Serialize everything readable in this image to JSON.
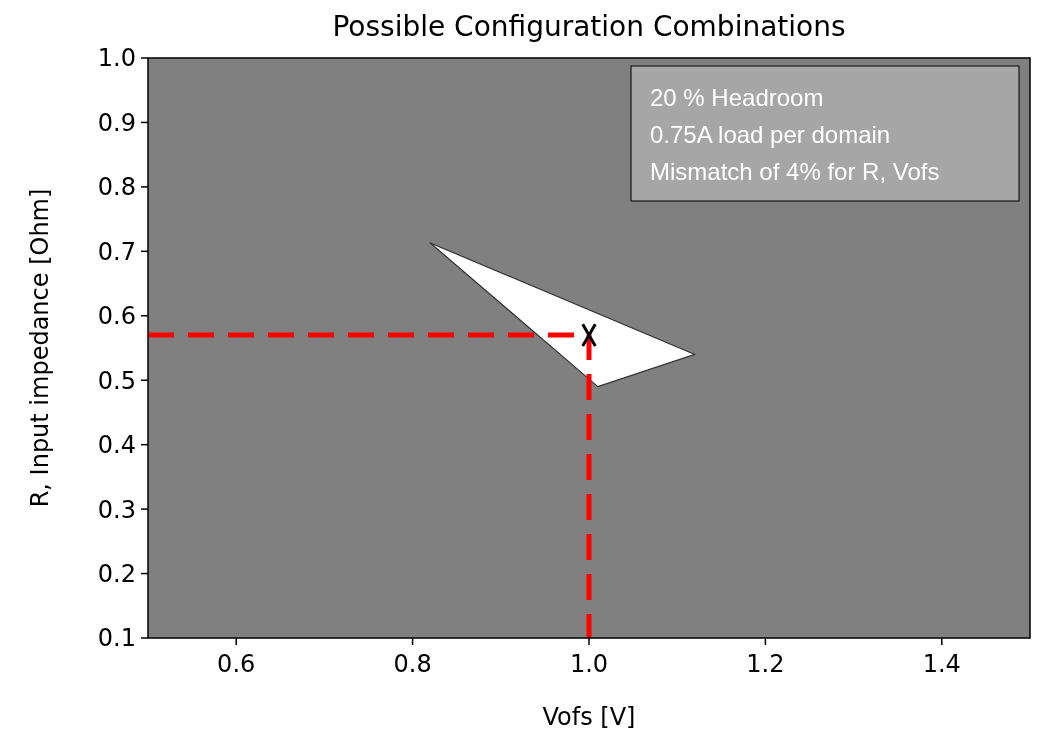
{
  "chart_data": {
    "type": "line",
    "title": "Possible Configuration Combinations",
    "xlabel": "Vofs [V]",
    "ylabel": "R, Input impedance [Ohm]",
    "xlim": [
      0.5,
      1.5
    ],
    "xticks": [
      0.6,
      0.8,
      {
        "value": 1,
        "label": "1.0"
      },
      1.2,
      1.4
    ],
    "ylim": [
      0.1,
      1.0
    ],
    "yticks": [
      0.1,
      0.2,
      0.3,
      0.4,
      0.5,
      0.6,
      0.7,
      0.8,
      0.9,
      {
        "value": 1,
        "label": "1.0"
      }
    ],
    "grid": false,
    "series": [
      {
        "type": "area",
        "color": "#ffffff",
        "x": [
          0.82,
          1.12,
          1.01,
          0.82
        ],
        "values": [
          0.713,
          0.54,
          0.49,
          0.713
        ]
      },
      {
        "color": "#ff0000",
        "line_style": "dashed",
        "x": [
          0.5,
          1.0,
          1.0
        ],
        "values": [
          0.57,
          0.57,
          0.1
        ]
      },
      {
        "type": "scatter",
        "color": "#000000",
        "marker": "cross",
        "x": [
          1.0
        ],
        "values": [
          0.57
        ]
      }
    ],
    "annotations": [
      "20 % Headroom",
      "0.75A load per domain",
      "Mismatch of 4% for R, Vofs"
    ]
  }
}
